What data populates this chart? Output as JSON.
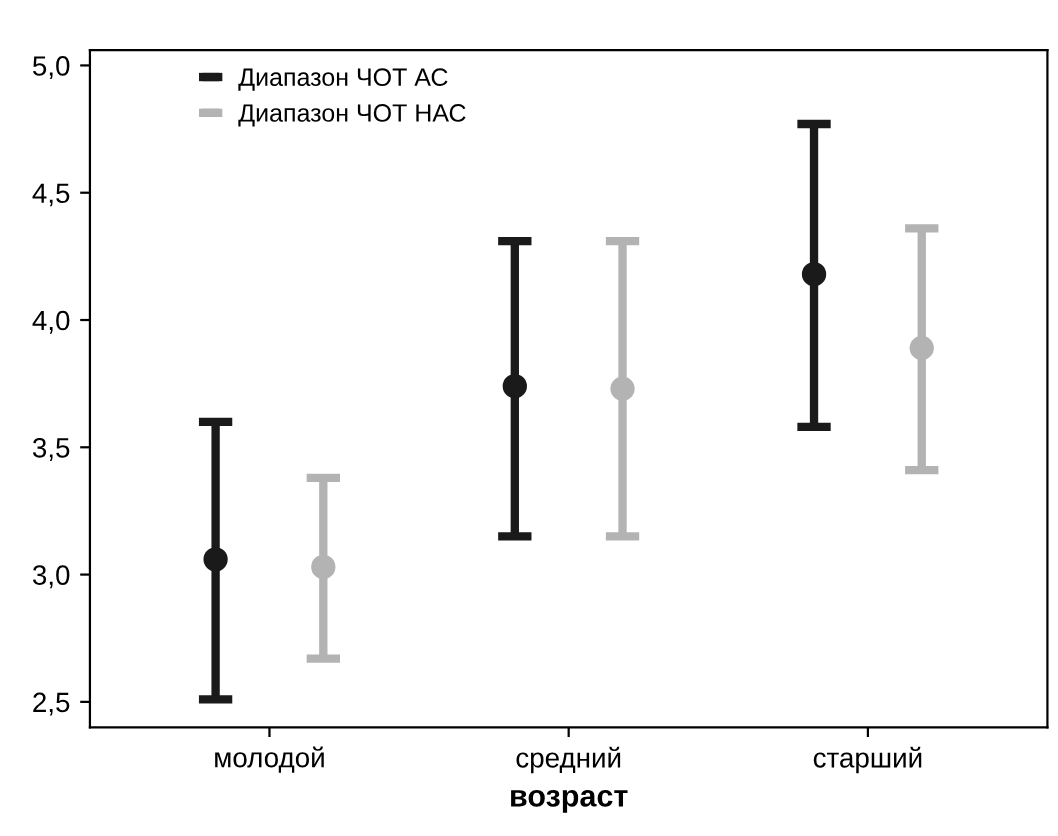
{
  "chart_data": {
    "type": "scatter",
    "xlabel": "возраст",
    "categories": [
      "молодой",
      "средний",
      "старший"
    ],
    "series": [
      {
        "name": "Диапазон ЧОТ АС",
        "color": "#1a1a1a",
        "values": [
          3.06,
          3.74,
          4.18
        ],
        "errors": [
          [
            2.51,
            3.6
          ],
          [
            3.15,
            4.31
          ],
          [
            3.58,
            4.77
          ]
        ]
      },
      {
        "name": "Диапазон ЧОТ НАС",
        "color": "#b3b3b3",
        "values": [
          3.03,
          3.73,
          3.89
        ],
        "errors": [
          [
            2.67,
            3.38
          ],
          [
            3.15,
            4.31
          ],
          [
            3.41,
            4.36
          ]
        ]
      }
    ],
    "ylim": [
      2.4,
      5.06
    ],
    "yticks": [
      {
        "value": 2.5,
        "label": "2,5"
      },
      {
        "value": 3.0,
        "label": "3,0"
      },
      {
        "value": 3.5,
        "label": "3,5"
      },
      {
        "value": 4.0,
        "label": "4,0"
      },
      {
        "value": 4.5,
        "label": "4,5"
      },
      {
        "value": 5.0,
        "label": "5,0"
      }
    ],
    "marker": "circle",
    "grid": false,
    "legend": "top left"
  }
}
